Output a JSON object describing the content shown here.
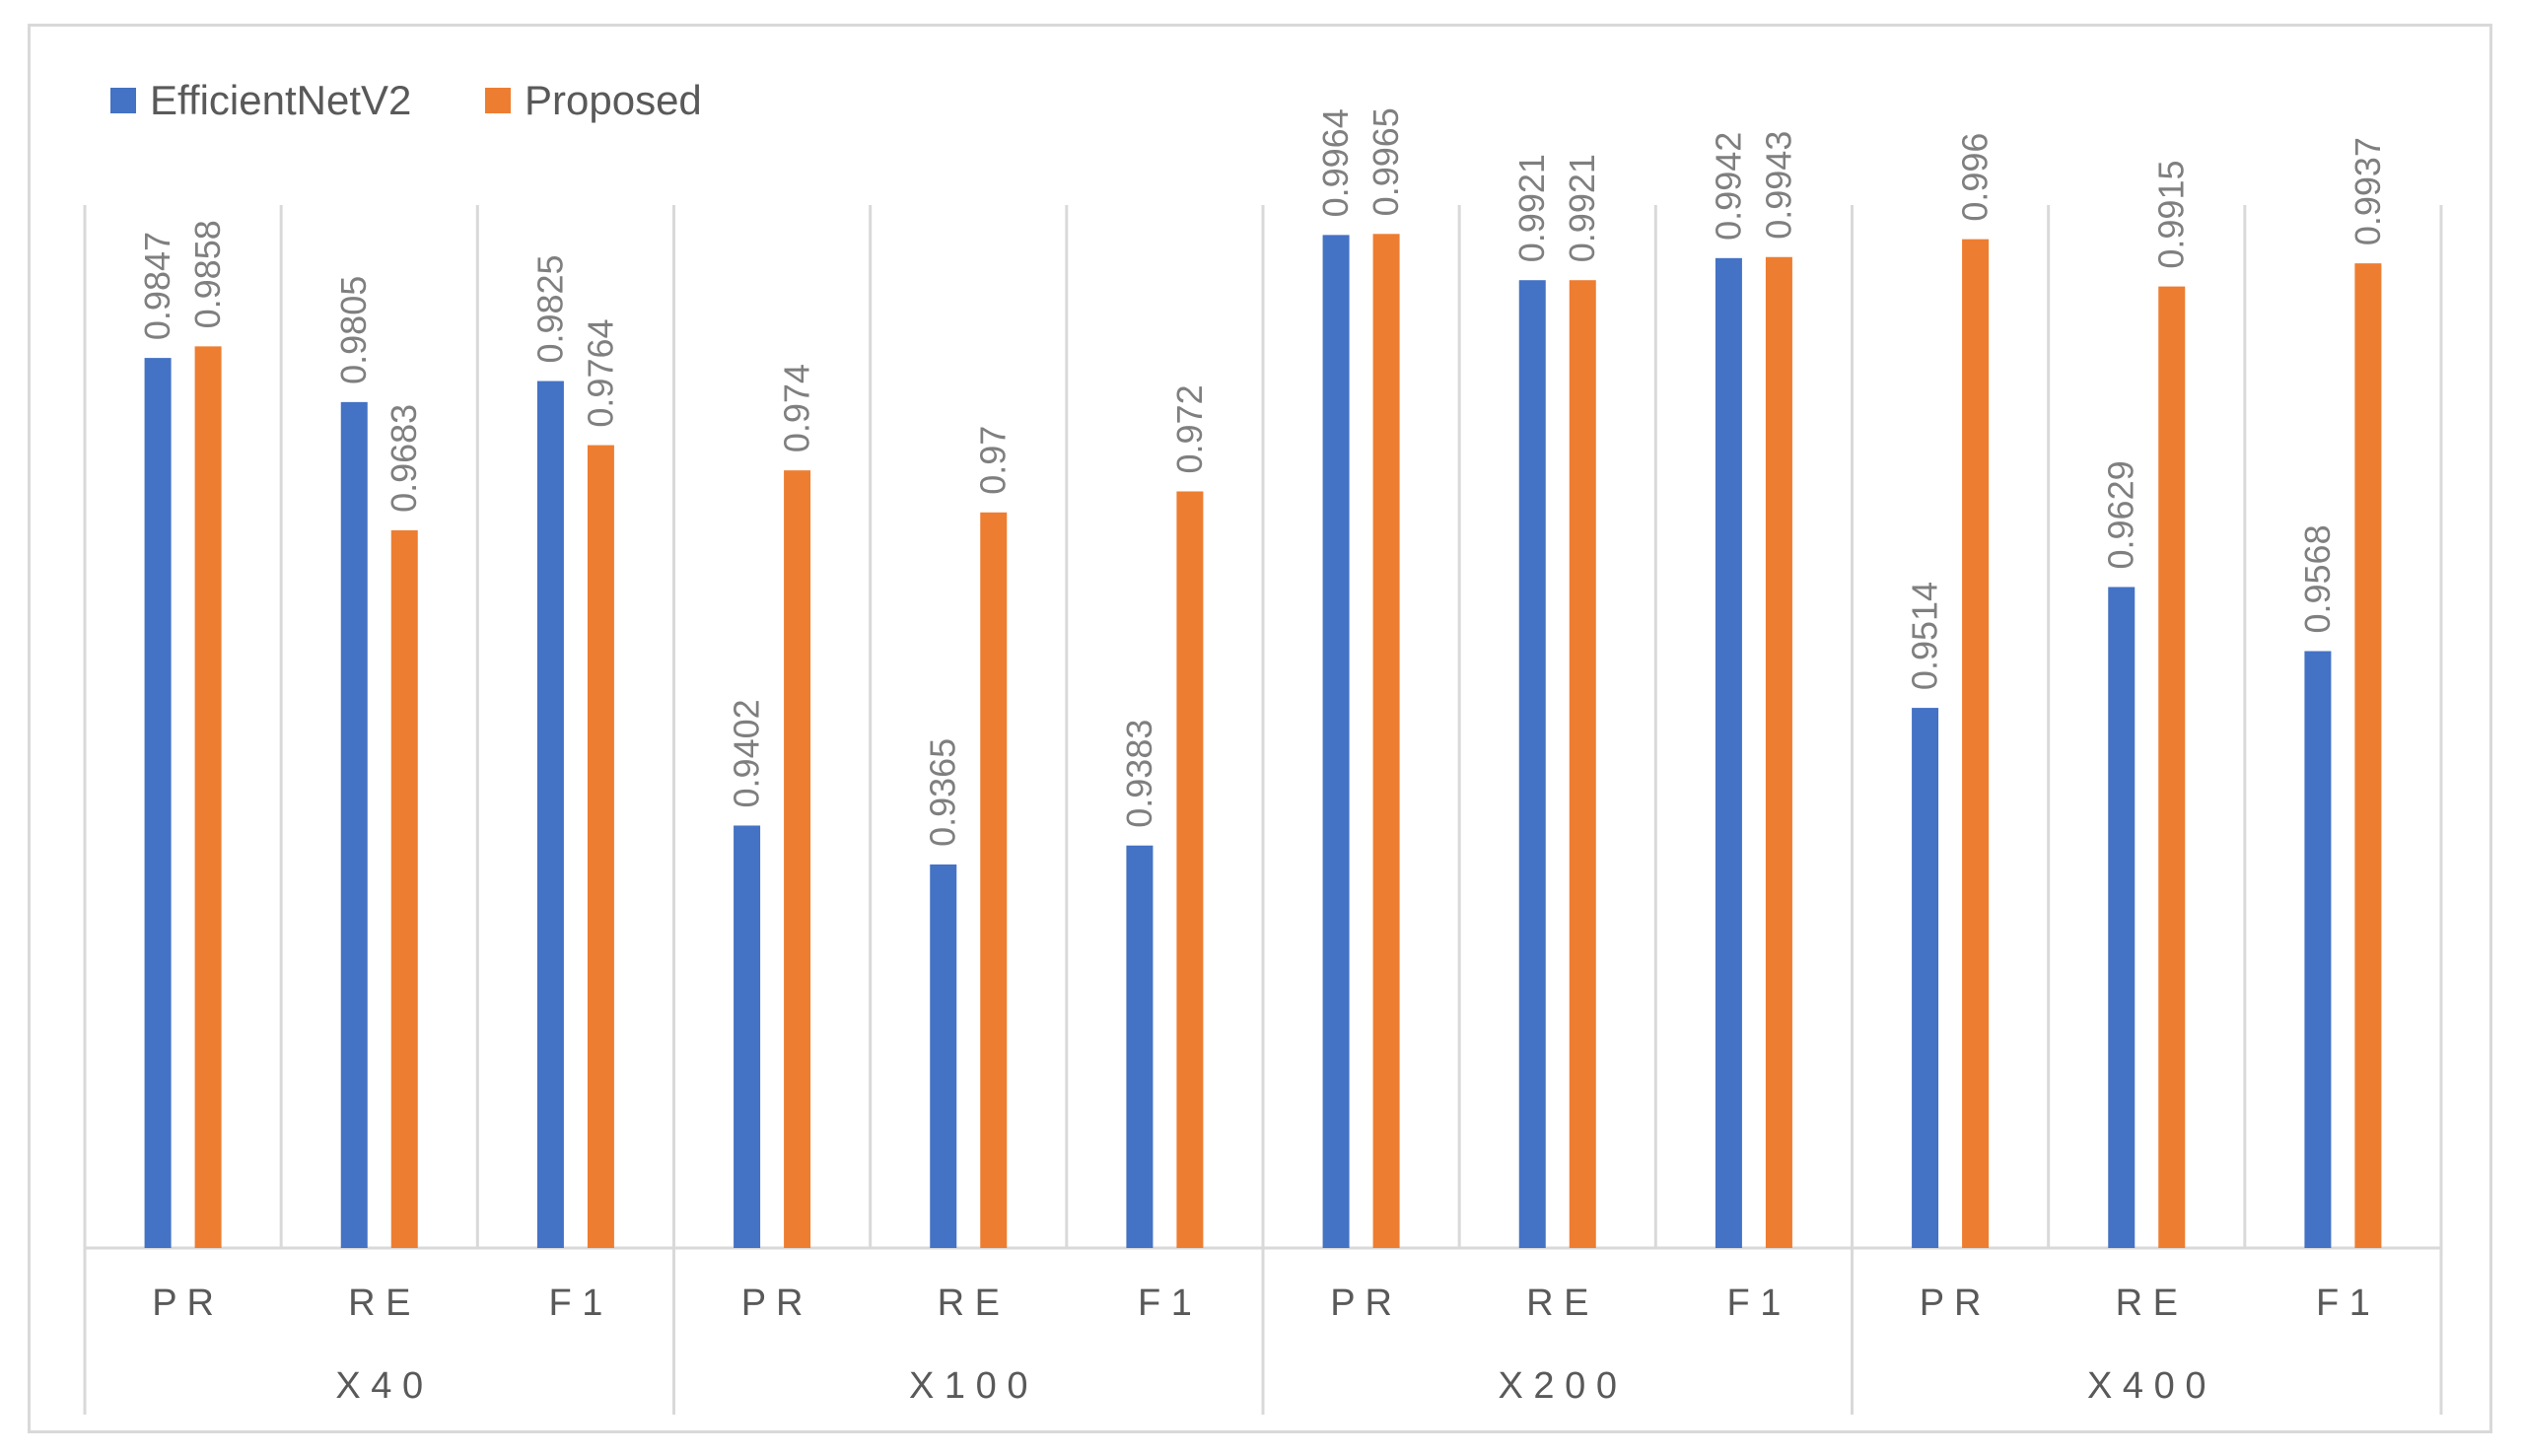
{
  "colors": {
    "efficientnet": "#4472C4",
    "proposed": "#ED7D31",
    "label": "#7f7f7f",
    "axis_text": "#595959",
    "grid": "#d9d9d9"
  },
  "legend": [
    {
      "name": "EfficientNetV2",
      "color": "#4472C4"
    },
    {
      "name": "Proposed",
      "color": "#ED7D31"
    }
  ],
  "chart_data": {
    "type": "bar",
    "title": "",
    "xlabel": "",
    "ylabel": "",
    "ylim": [
      0.9,
      1.0
    ],
    "groups": [
      "X40",
      "X100",
      "X200",
      "X400"
    ],
    "categories": [
      "PR",
      "RE",
      "F1",
      "PR",
      "RE",
      "F1",
      "PR",
      "RE",
      "F1",
      "PR",
      "RE",
      "F1"
    ],
    "category_labels": [
      "P R",
      "R E",
      "F 1",
      "P R",
      "R E",
      "F 1",
      "P R",
      "R E",
      "F 1",
      "P R",
      "R E",
      "F 1"
    ],
    "group_labels": [
      "X 4 0",
      "X 1 0 0",
      "X 2 0 0",
      "X 4 0 0"
    ],
    "series": [
      {
        "name": "EfficientNetV2",
        "values": [
          0.9847,
          0.9805,
          0.9825,
          0.9402,
          0.9365,
          0.9383,
          0.9964,
          0.9921,
          0.9942,
          0.9514,
          0.9629,
          0.9568
        ],
        "labels": [
          "0.9847",
          "0.9805",
          "0.9825",
          "0.9402",
          "0.9365",
          "0.9383",
          "0.9964",
          "0.9921",
          "0.9942",
          "0.9514",
          "0.9629",
          "0.9568"
        ]
      },
      {
        "name": "Proposed",
        "values": [
          0.9858,
          0.9683,
          0.9764,
          0.974,
          0.97,
          0.972,
          0.9965,
          0.9921,
          0.9943,
          0.996,
          0.9915,
          0.9937
        ],
        "labels": [
          "0.9858",
          "0.9683",
          "0.9764",
          "0.974",
          "0.97",
          "0.972",
          "0.9965",
          "0.9921",
          "0.9943",
          "0.996",
          "0.9915",
          "0.9937"
        ]
      }
    ]
  }
}
